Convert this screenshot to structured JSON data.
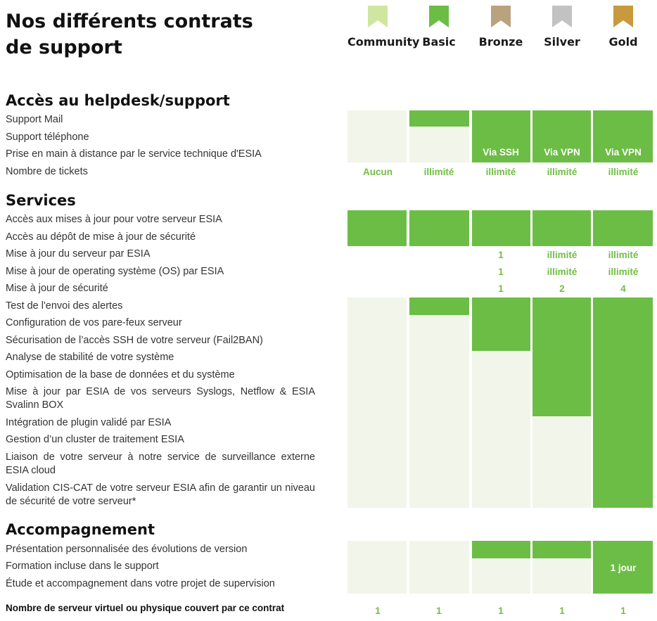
{
  "title": {
    "line1": "Nos différents contrats",
    "line2": "de support"
  },
  "tiers": [
    {
      "name": "Community",
      "color": "#cfe6a0"
    },
    {
      "name": "Basic",
      "color": "#6cbd45"
    },
    {
      "name": "Bronze",
      "color": "#b9a27e"
    },
    {
      "name": "Silver",
      "color": "#c2c2c2"
    },
    {
      "name": "Gold",
      "color": "#c99a3c"
    }
  ],
  "colors": {
    "green": "#6cbd45",
    "pale": "#f2f5ea",
    "value_text": "#72bd45"
  },
  "sections": {
    "helpdesk": {
      "title": "Accès au helpdesk/support",
      "features": [
        "Support Mail",
        "Support téléphone",
        "Prise en main à distance par le service technique d'ESIA",
        "Nombre de tickets"
      ],
      "remote": [
        "",
        "",
        "Via SSH",
        "Via VPN",
        "Via VPN"
      ],
      "tickets": [
        "Aucun",
        "illimité",
        "illimité",
        "illimité",
        "illimité"
      ]
    },
    "services": {
      "title": "Services",
      "features": [
        "Accès aux mises à jour pour votre serveur ESIA",
        "Accès au dépôt de mise à jour de sécurité",
        "Mise à jour du serveur par ESIA",
        "Mise à jour de operating système (OS) par ESIA",
        "Mise à jour de sécurité",
        "Test de l'envoi des alertes",
        "Configuration de vos pare-feux serveur",
        "Sécurisation de l’accès SSH de votre serveur (Fail2BAN)",
        "Analyse de stabilité de votre système",
        "Optimisation de la base de données et du système",
        "Mise à jour par ESIA de vos serveurs Syslogs, Netflow & ESIA Svalinn BOX",
        "Intégration de plugin validé par ESIA",
        "Gestion d’un cluster de traitement ESIA",
        "Liaison de votre serveur à notre service de surveillance externe ESIA cloud",
        "Validation CIS-CAT de votre serveur ESIA afin de garantir un niveau de sécurité de votre serveur*"
      ],
      "server_updates": [
        "",
        "",
        "1",
        "illimité",
        "illimité"
      ],
      "os_updates": [
        "",
        "",
        "1",
        "illimité",
        "illimité"
      ],
      "security_updates": [
        "",
        "",
        "1",
        "2",
        "4"
      ]
    },
    "accompagnement": {
      "title": "Accompagnement",
      "features": [
        "Présentation personnalisée des évolutions de version",
        "Formation incluse dans le support",
        "Étude et accompagnement dans votre projet de supervision"
      ],
      "formation": [
        "",
        "",
        "",
        "",
        "1 jour"
      ]
    }
  },
  "footer": {
    "label": "Nombre de serveur virtuel ou physique couvert par ce contrat",
    "values": [
      "1",
      "1",
      "1",
      "1",
      "1"
    ]
  }
}
